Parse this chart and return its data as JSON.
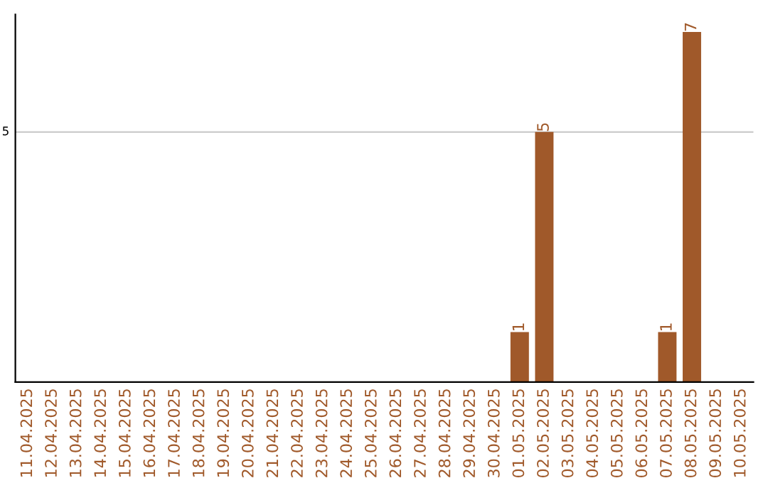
{
  "chart_data": {
    "type": "bar",
    "categories": [
      "11.04.2025",
      "12.04.2025",
      "13.04.2025",
      "14.04.2025",
      "15.04.2025",
      "16.04.2025",
      "17.04.2025",
      "18.04.2025",
      "19.04.2025",
      "20.04.2025",
      "21.04.2025",
      "22.04.2025",
      "23.04.2025",
      "24.04.2025",
      "25.04.2025",
      "26.04.2025",
      "27.04.2025",
      "28.04.2025",
      "29.04.2025",
      "30.04.2025",
      "01.05.2025",
      "02.05.2025",
      "03.05.2025",
      "04.05.2025",
      "05.05.2025",
      "06.05.2025",
      "07.05.2025",
      "08.05.2025",
      "09.05.2025",
      "10.05.2025"
    ],
    "values": [
      null,
      null,
      null,
      null,
      null,
      null,
      null,
      null,
      null,
      null,
      null,
      null,
      null,
      null,
      null,
      null,
      null,
      null,
      null,
      null,
      1,
      5,
      null,
      null,
      null,
      null,
      1,
      7,
      null,
      null
    ],
    "data_labels": true,
    "color": "#a0592a",
    "ref_lines": [
      {
        "axis": "y",
        "value": 5,
        "label": "5",
        "color": "#cccccc"
      }
    ],
    "legend": false
  }
}
